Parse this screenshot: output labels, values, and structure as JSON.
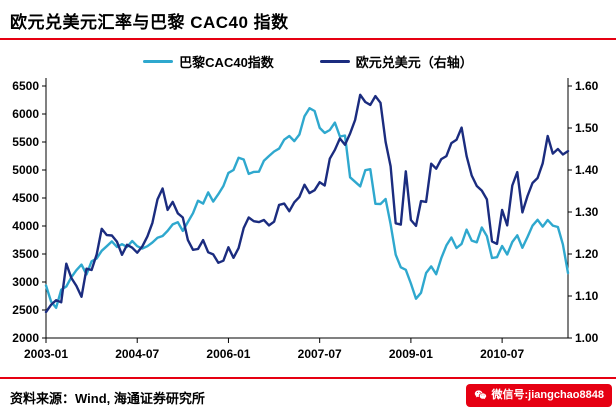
{
  "title": "欧元兑美元汇率与巴黎 CAC40 指数",
  "accent_color": "#e60012",
  "legend": [
    {
      "id": "cac40",
      "label": "巴黎CAC40指数",
      "color": "#2fa8ce"
    },
    {
      "id": "eurusd",
      "label": "欧元兑美元（右轴）",
      "color": "#1b2c7f"
    }
  ],
  "footer": {
    "source_label": "资料来源：Wind, 海通证券研究所"
  },
  "wechat_badge": {
    "label": "微信号:jiangchao8848"
  },
  "chart_data": {
    "type": "line",
    "title": "欧元兑美元汇率与巴黎 CAC40 指数",
    "xlabel": "",
    "ylabel_left": "",
    "ylabel_right": "",
    "grid": false,
    "legend_position": "top-center",
    "x_tick_labels": [
      "2003-01",
      "2004-07",
      "2006-01",
      "2007-07",
      "2009-01",
      "2010-07"
    ],
    "x_tick_positions": [
      0,
      18,
      36,
      54,
      72,
      90
    ],
    "x_total_points": 104,
    "x_start": "2003-01",
    "x_end": "2011-08",
    "x_frequency": "monthly",
    "left_axis": {
      "min": 2000,
      "max": 6500,
      "step": 500
    },
    "right_axis": {
      "min": 1.0,
      "max": 1.6,
      "step": 0.1
    },
    "series": [
      {
        "id": "cac40-line",
        "name": "巴黎CAC40指数",
        "axis": "left",
        "color": "#2fa8ce",
        "values": [
          2938,
          2650,
          2540,
          2860,
          2920,
          3084,
          3210,
          3310,
          3136,
          3370,
          3420,
          3558,
          3640,
          3725,
          3625,
          3675,
          3626,
          3733,
          3640,
          3596,
          3640,
          3706,
          3790,
          3821,
          3913,
          4028,
          4067,
          3912,
          4072,
          4229,
          4452,
          4400,
          4600,
          4436,
          4567,
          4715,
          4948,
          5000,
          5220,
          5188,
          4930,
          4966,
          4969,
          5165,
          5250,
          5330,
          5382,
          5541,
          5608,
          5516,
          5634,
          5960,
          6104,
          6054,
          5751,
          5662,
          5715,
          5847,
          5598,
          5614,
          4869,
          4790,
          4707,
          4997,
          5014,
          4397,
          4392,
          4482,
          4032,
          3487,
          3262,
          3218,
          2973,
          2702,
          2807,
          3160,
          3278,
          3140,
          3426,
          3653,
          3795,
          3607,
          3680,
          3936,
          3739,
          3709,
          3974,
          3817,
          3429,
          3443,
          3643,
          3491,
          3715,
          3834,
          3610,
          3804,
          4005,
          4110,
          3989,
          4107,
          4007,
          3982,
          3672,
          3160
        ]
      },
      {
        "id": "eurusd-line",
        "name": "欧元兑美元（右轴）",
        "axis": "right",
        "color": "#1b2c7f",
        "values": [
          1.062,
          1.079,
          1.09,
          1.085,
          1.177,
          1.143,
          1.124,
          1.098,
          1.165,
          1.162,
          1.199,
          1.26,
          1.245,
          1.244,
          1.229,
          1.198,
          1.222,
          1.215,
          1.203,
          1.218,
          1.242,
          1.274,
          1.33,
          1.356,
          1.305,
          1.324,
          1.297,
          1.287,
          1.233,
          1.21,
          1.212,
          1.233,
          1.204,
          1.199,
          1.179,
          1.184,
          1.216,
          1.191,
          1.214,
          1.262,
          1.287,
          1.278,
          1.276,
          1.281,
          1.268,
          1.277,
          1.317,
          1.32,
          1.302,
          1.323,
          1.336,
          1.365,
          1.345,
          1.352,
          1.371,
          1.363,
          1.427,
          1.448,
          1.475,
          1.46,
          1.487,
          1.519,
          1.579,
          1.562,
          1.555,
          1.576,
          1.56,
          1.467,
          1.409,
          1.273,
          1.27,
          1.397,
          1.281,
          1.267,
          1.326,
          1.324,
          1.415,
          1.403,
          1.426,
          1.433,
          1.464,
          1.472,
          1.501,
          1.433,
          1.387,
          1.362,
          1.351,
          1.33,
          1.23,
          1.224,
          1.305,
          1.268,
          1.363,
          1.395,
          1.299,
          1.338,
          1.369,
          1.381,
          1.416,
          1.481,
          1.439,
          1.45,
          1.437,
          1.445
        ]
      }
    ]
  }
}
